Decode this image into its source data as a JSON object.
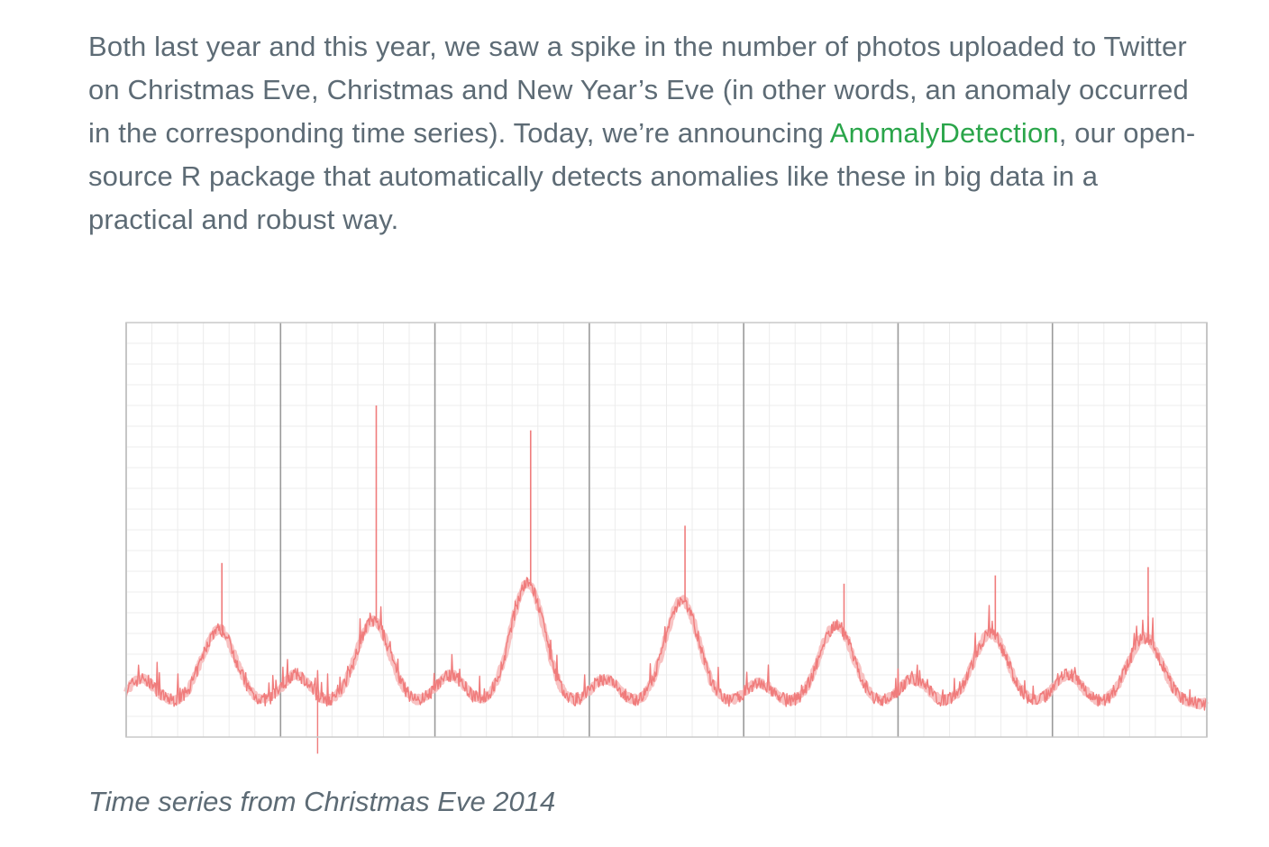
{
  "article": {
    "text_before_link": "Both last year and this year, we saw a spike in the number of photos uploaded to Twitter on Christmas Eve, Christmas and New Year’s Eve (in other words, an anomaly occurred in the corresponding time series). Today, we’re announcing ",
    "link_text": "AnomalyDetection",
    "text_after_link": ", our open-source R package that automatically detects anomalies like these in big data in a practical and robust way.",
    "link_color": "#2aa54a",
    "text_color": "#5d6b75"
  },
  "figure": {
    "caption": "Time series from Christmas Eve 2014"
  },
  "chart_data": {
    "type": "line",
    "title": "",
    "xlabel": "",
    "ylabel": "",
    "xlim": [
      0,
      7
    ],
    "ylim": [
      0,
      100
    ],
    "grid": true,
    "series_color": "#f07c7c",
    "major_x_ticks": [
      0,
      1,
      2,
      3,
      4,
      5,
      6,
      7
    ],
    "daily_peaks": [
      {
        "day": 0.6,
        "value": 26
      },
      {
        "day": 1.6,
        "value": 28
      },
      {
        "day": 2.6,
        "value": 37
      },
      {
        "day": 3.6,
        "value": 33
      },
      {
        "day": 4.6,
        "value": 27
      },
      {
        "day": 5.6,
        "value": 25
      },
      {
        "day": 6.6,
        "value": 24
      }
    ],
    "half_day_peaks": [
      {
        "day": 0.1,
        "value": 14
      },
      {
        "day": 1.1,
        "value": 15
      },
      {
        "day": 2.1,
        "value": 15
      },
      {
        "day": 3.1,
        "value": 14
      },
      {
        "day": 4.1,
        "value": 13
      },
      {
        "day": 5.1,
        "value": 14
      },
      {
        "day": 6.1,
        "value": 15
      }
    ],
    "baseline": 8,
    "anomaly_spikes": [
      {
        "day": 0.62,
        "value": 42
      },
      {
        "day": 1.62,
        "value": 80
      },
      {
        "day": 2.62,
        "value": 74
      },
      {
        "day": 3.62,
        "value": 51
      },
      {
        "day": 4.65,
        "value": 37
      },
      {
        "day": 5.63,
        "value": 39
      },
      {
        "day": 6.62,
        "value": 41
      }
    ],
    "dip_spikes": [
      {
        "day": 1.24,
        "value": -4
      }
    ]
  }
}
